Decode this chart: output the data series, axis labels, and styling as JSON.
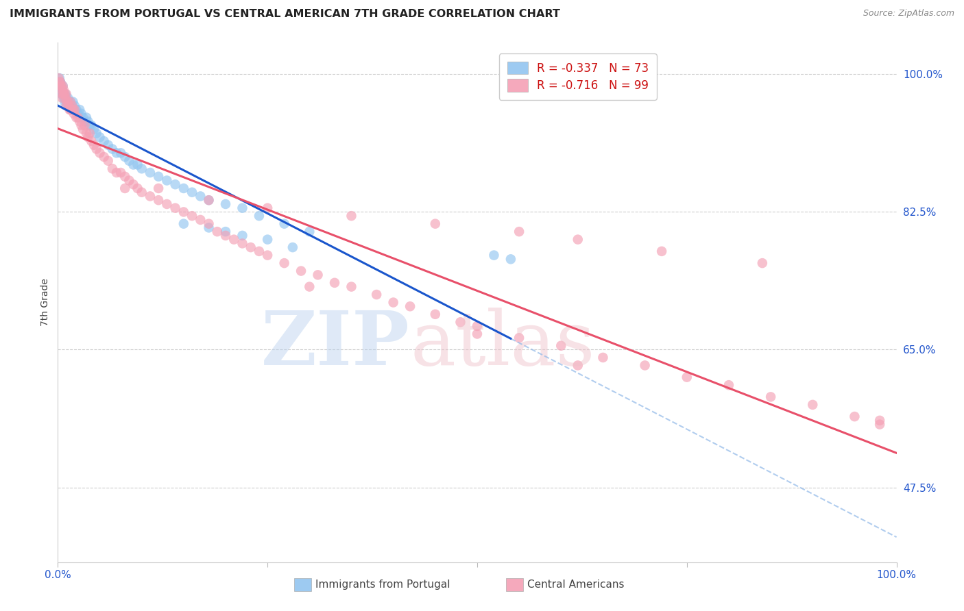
{
  "title": "IMMIGRANTS FROM PORTUGAL VS CENTRAL AMERICAN 7TH GRADE CORRELATION CHART",
  "source": "Source: ZipAtlas.com",
  "ylabel": "7th Grade",
  "ytick_labels": [
    "100.0%",
    "82.5%",
    "65.0%",
    "47.5%"
  ],
  "ytick_values": [
    1.0,
    0.825,
    0.65,
    0.475
  ],
  "xlim": [
    0.0,
    1.0
  ],
  "ylim": [
    0.38,
    1.04
  ],
  "color_portugal": "#92C5F0",
  "color_central": "#F4A0B5",
  "line_color_portugal": "#1A56CC",
  "line_color_central": "#E8506A",
  "line_color_portugal_dashed": "#90B8E8",
  "portugal_x": [
    0.001,
    0.002,
    0.002,
    0.003,
    0.003,
    0.004,
    0.004,
    0.005,
    0.005,
    0.006,
    0.006,
    0.007,
    0.007,
    0.008,
    0.008,
    0.009,
    0.01,
    0.01,
    0.011,
    0.012,
    0.013,
    0.014,
    0.015,
    0.016,
    0.017,
    0.018,
    0.019,
    0.02,
    0.022,
    0.024,
    0.026,
    0.028,
    0.03,
    0.032,
    0.034,
    0.036,
    0.038,
    0.04,
    0.043,
    0.046,
    0.05,
    0.055,
    0.06,
    0.065,
    0.07,
    0.075,
    0.08,
    0.085,
    0.09,
    0.095,
    0.1,
    0.11,
    0.12,
    0.13,
    0.14,
    0.15,
    0.16,
    0.17,
    0.18,
    0.2,
    0.22,
    0.24,
    0.27,
    0.3,
    0.15,
    0.18,
    0.2,
    0.22,
    0.25,
    0.28,
    0.52,
    0.54,
    0.003,
    0.004
  ],
  "portugal_y": [
    0.99,
    0.995,
    0.985,
    0.99,
    0.98,
    0.985,
    0.975,
    0.98,
    0.975,
    0.985,
    0.975,
    0.97,
    0.975,
    0.97,
    0.965,
    0.975,
    0.97,
    0.965,
    0.96,
    0.97,
    0.965,
    0.96,
    0.965,
    0.955,
    0.96,
    0.965,
    0.955,
    0.96,
    0.955,
    0.95,
    0.955,
    0.95,
    0.945,
    0.94,
    0.945,
    0.94,
    0.935,
    0.935,
    0.93,
    0.925,
    0.92,
    0.915,
    0.91,
    0.905,
    0.9,
    0.9,
    0.895,
    0.89,
    0.885,
    0.885,
    0.88,
    0.875,
    0.87,
    0.865,
    0.86,
    0.855,
    0.85,
    0.845,
    0.84,
    0.835,
    0.83,
    0.82,
    0.81,
    0.8,
    0.81,
    0.805,
    0.8,
    0.795,
    0.79,
    0.78,
    0.77,
    0.765,
    0.99,
    0.98
  ],
  "central_x": [
    0.001,
    0.002,
    0.003,
    0.003,
    0.004,
    0.005,
    0.005,
    0.006,
    0.007,
    0.007,
    0.008,
    0.009,
    0.01,
    0.011,
    0.012,
    0.013,
    0.014,
    0.015,
    0.016,
    0.017,
    0.018,
    0.019,
    0.02,
    0.022,
    0.024,
    0.026,
    0.028,
    0.03,
    0.032,
    0.034,
    0.036,
    0.038,
    0.04,
    0.043,
    0.046,
    0.05,
    0.055,
    0.06,
    0.065,
    0.07,
    0.075,
    0.08,
    0.085,
    0.09,
    0.095,
    0.1,
    0.11,
    0.12,
    0.13,
    0.14,
    0.15,
    0.16,
    0.17,
    0.18,
    0.19,
    0.2,
    0.21,
    0.22,
    0.23,
    0.24,
    0.25,
    0.27,
    0.29,
    0.31,
    0.33,
    0.35,
    0.38,
    0.4,
    0.42,
    0.45,
    0.48,
    0.5,
    0.55,
    0.6,
    0.65,
    0.7,
    0.75,
    0.8,
    0.85,
    0.9,
    0.95,
    0.98,
    0.005,
    0.01,
    0.015,
    0.08,
    0.12,
    0.18,
    0.25,
    0.35,
    0.45,
    0.55,
    0.62,
    0.72,
    0.84,
    0.5,
    0.62,
    0.98,
    0.3
  ],
  "central_y": [
    0.995,
    0.99,
    0.985,
    0.99,
    0.985,
    0.98,
    0.975,
    0.985,
    0.975,
    0.98,
    0.975,
    0.97,
    0.975,
    0.965,
    0.965,
    0.96,
    0.955,
    0.965,
    0.955,
    0.96,
    0.955,
    0.95,
    0.955,
    0.945,
    0.945,
    0.94,
    0.935,
    0.93,
    0.935,
    0.925,
    0.92,
    0.925,
    0.915,
    0.91,
    0.905,
    0.9,
    0.895,
    0.89,
    0.88,
    0.875,
    0.875,
    0.87,
    0.865,
    0.86,
    0.855,
    0.85,
    0.845,
    0.84,
    0.835,
    0.83,
    0.825,
    0.82,
    0.815,
    0.81,
    0.8,
    0.795,
    0.79,
    0.785,
    0.78,
    0.775,
    0.77,
    0.76,
    0.75,
    0.745,
    0.735,
    0.73,
    0.72,
    0.71,
    0.705,
    0.695,
    0.685,
    0.68,
    0.665,
    0.655,
    0.64,
    0.63,
    0.615,
    0.605,
    0.59,
    0.58,
    0.565,
    0.555,
    0.97,
    0.96,
    0.955,
    0.855,
    0.855,
    0.84,
    0.83,
    0.82,
    0.81,
    0.8,
    0.79,
    0.775,
    0.76,
    0.67,
    0.63,
    0.56,
    0.73
  ]
}
